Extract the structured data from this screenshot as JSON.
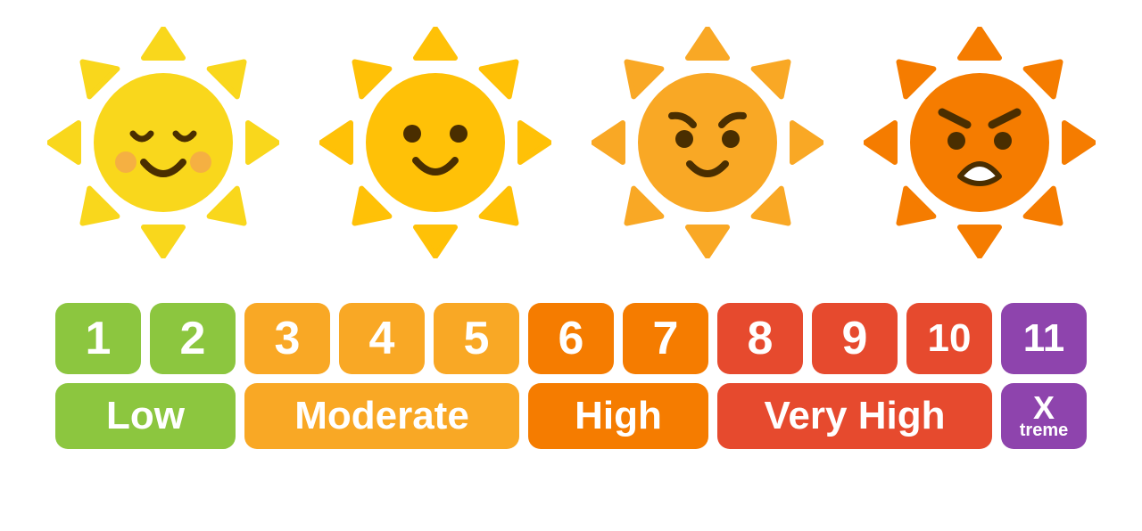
{
  "colors": {
    "low": "#8cc63f",
    "moderate": "#f9a825",
    "high": "#f57c00",
    "very_high": "#e64a2e",
    "extreme": "#8e44ad",
    "white": "#ffffff",
    "face_dark": "#4a2e00"
  },
  "suns": [
    {
      "expression": "calm",
      "body": "#f9d71c",
      "rays": "#f9d71c",
      "ring": "#ffffff",
      "cheeks": "#f5b042"
    },
    {
      "expression": "happy",
      "body": "#ffc107",
      "rays": "#ffc107",
      "ring": "#ffffff"
    },
    {
      "expression": "stern",
      "body": "#f9a825",
      "rays": "#f9a825",
      "ring": "#ffffff"
    },
    {
      "expression": "angry",
      "body": "#f57c00",
      "rays": "#f57c00",
      "ring": "#ffffff"
    }
  ],
  "numbers": [
    {
      "n": "1",
      "color": "#8cc63f"
    },
    {
      "n": "2",
      "color": "#8cc63f"
    },
    {
      "n": "3",
      "color": "#f9a825"
    },
    {
      "n": "4",
      "color": "#f9a825"
    },
    {
      "n": "5",
      "color": "#f9a825"
    },
    {
      "n": "6",
      "color": "#f57c00"
    },
    {
      "n": "7",
      "color": "#f57c00"
    },
    {
      "n": "8",
      "color": "#e64a2e"
    },
    {
      "n": "9",
      "color": "#e64a2e"
    },
    {
      "n": "10",
      "color": "#e64a2e"
    },
    {
      "n": "11",
      "color": "#8e44ad"
    }
  ],
  "labels": [
    {
      "text": "Low",
      "color": "#8cc63f",
      "span": 2
    },
    {
      "text": "Moderate",
      "color": "#f9a825",
      "span": 3
    },
    {
      "text": "High",
      "color": "#f57c00",
      "span": 2
    },
    {
      "text": "Very High",
      "color": "#e64a2e",
      "span": 3
    },
    {
      "text_main": "X",
      "text_sub": "treme",
      "color": "#8e44ad",
      "span": 1
    }
  ],
  "layout": {
    "num_box_width": 96,
    "gap": 10,
    "label_height": 74,
    "num_height": 80,
    "radius": 14,
    "num_fontsize": 52,
    "label_fontsize": 44
  }
}
